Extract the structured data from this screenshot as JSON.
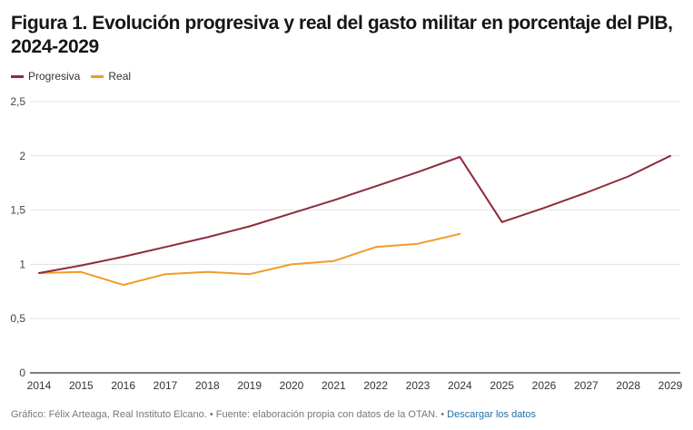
{
  "header": {
    "title": "Figura 1. Evolución progresiva y real del gasto militar en porcentaje del PIB, 2024-2029"
  },
  "footer": {
    "credit": "Gráfico: Félix Arteaga, Real Instituto Elcano.",
    "separator": " • ",
    "source": "Fuente: elaboración propia con datos de la OTAN.",
    "download_label": "Descargar los datos"
  },
  "colors": {
    "progresiva": "#8e2a3a",
    "real": "#f39b26",
    "grid": "#e3e3e3",
    "axis": "#555555",
    "link": "#1f6fa8"
  },
  "chart_data": {
    "type": "line",
    "title": "Figura 1. Evolución progresiva y real del gasto militar en porcentaje del PIB, 2024-2029",
    "xlabel": "",
    "ylabel": "",
    "x": [
      "2014",
      "2015",
      "2016",
      "2017",
      "2018",
      "2019",
      "2020",
      "2021",
      "2022",
      "2023",
      "2024",
      "2025",
      "2026",
      "2027",
      "2028",
      "2029"
    ],
    "y_ticks": [
      0,
      0.5,
      1,
      1.5,
      2,
      2.5
    ],
    "y_tick_labels": [
      "0",
      "0,5",
      "1",
      "1,5",
      "2",
      "2,5"
    ],
    "ylim": [
      0,
      2.5
    ],
    "grid": true,
    "legend_position": "top-left",
    "series": [
      {
        "name": "Progresiva",
        "color": "#8e2a3a",
        "values": [
          0.92,
          0.99,
          1.07,
          1.16,
          1.25,
          1.35,
          1.47,
          1.59,
          1.72,
          1.85,
          1.99,
          1.39,
          1.52,
          1.66,
          1.81,
          2.0
        ]
      },
      {
        "name": "Real",
        "color": "#f39b26",
        "values": [
          0.92,
          0.93,
          0.81,
          0.91,
          0.93,
          0.91,
          1.0,
          1.03,
          1.16,
          1.19,
          1.28,
          null,
          null,
          null,
          null,
          null
        ]
      }
    ]
  }
}
